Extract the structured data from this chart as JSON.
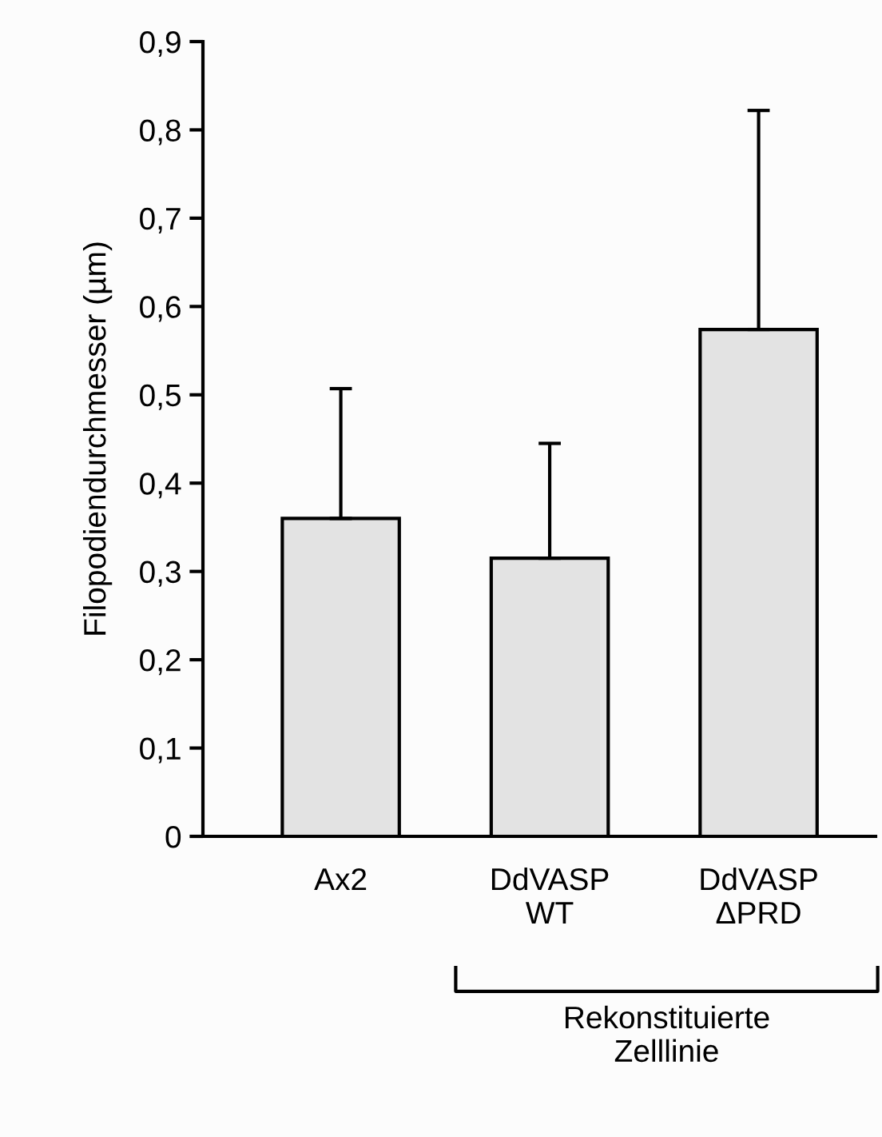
{
  "chart_data": {
    "type": "bar",
    "ylabel": "Filopodiendurchmesser (µm)",
    "categories": [
      "Ax2",
      "DdVASP\nWT",
      "DdVASP\nΔPRD"
    ],
    "values": [
      0.36,
      0.315,
      0.574
    ],
    "errors": [
      [
        0.36,
        0.507
      ],
      [
        0.315,
        0.445
      ],
      [
        0.574,
        0.822
      ]
    ],
    "color": "#e3e3e3",
    "ylim": [
      0,
      0.9
    ],
    "yticks": [
      {
        "value": 0,
        "label": "0"
      },
      {
        "value": 0.1,
        "label": "0,1"
      },
      {
        "value": 0.2,
        "label": "0,2"
      },
      {
        "value": 0.3,
        "label": "0,3"
      },
      {
        "value": 0.4,
        "label": "0,4"
      },
      {
        "value": 0.5,
        "label": "0,5"
      },
      {
        "value": 0.6,
        "label": "0,6"
      },
      {
        "value": 0.7,
        "label": "0,7"
      },
      {
        "value": 0.8,
        "label": "0,8"
      },
      {
        "value": 0.9,
        "label": "0,9"
      }
    ],
    "annotations": [
      {
        "text": "Rekonstituierte\nZelllinie"
      }
    ],
    "grid": false
  }
}
